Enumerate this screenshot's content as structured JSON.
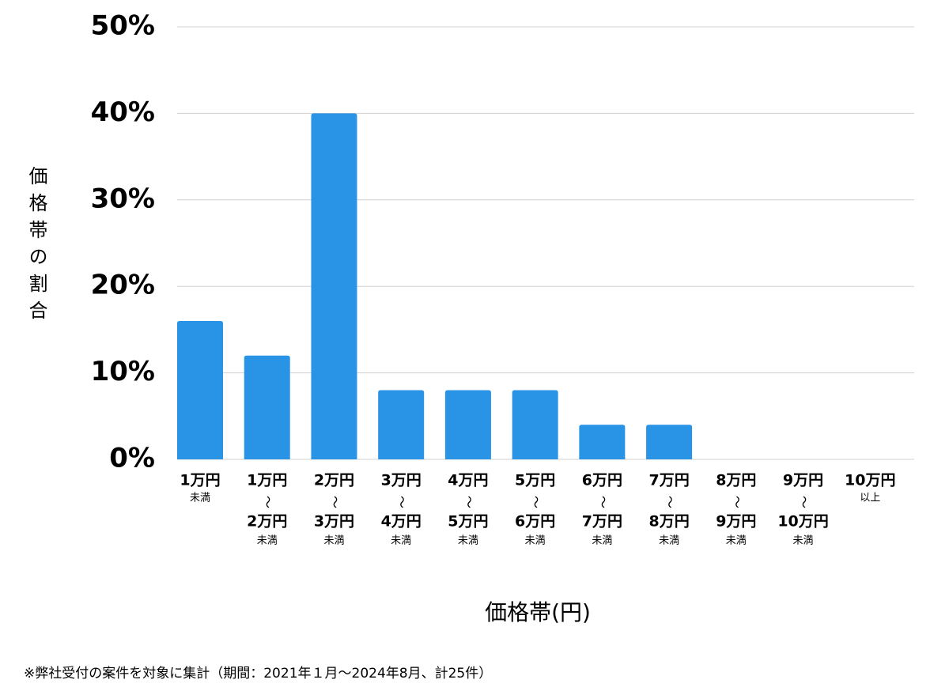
{
  "chart_data": {
    "type": "bar",
    "x_label": "価格帯(円)",
    "y_label": "価格帯の割合",
    "note": "※弊社受付の案件を対象に集計（期間：2021年１月～2024年8月、計25件）",
    "categories": [
      [
        "1万円",
        "未満"
      ],
      [
        "1万円",
        "〜",
        "2万円",
        "未満"
      ],
      [
        "2万円",
        "〜",
        "3万円",
        "未満"
      ],
      [
        "3万円",
        "〜",
        "4万円",
        "未満"
      ],
      [
        "4万円",
        "〜",
        "5万円",
        "未満"
      ],
      [
        "5万円",
        "〜",
        "6万円",
        "未満"
      ],
      [
        "6万円",
        "〜",
        "7万円",
        "未満"
      ],
      [
        "7万円",
        "〜",
        "8万円",
        "未満"
      ],
      [
        "8万円",
        "〜",
        "9万円",
        "未満"
      ],
      [
        "9万円",
        "〜",
        "10万円",
        "未満"
      ],
      [
        "10万円",
        "以上"
      ]
    ],
    "values": [
      16,
      12,
      40,
      8,
      8,
      8,
      4,
      4,
      0,
      0,
      0
    ],
    "color": "#2993e5",
    "ylim": [
      0,
      50
    ],
    "yticks": [
      {
        "value": 0,
        "label": "0%"
      },
      {
        "value": 10,
        "label": "10%"
      },
      {
        "value": 20,
        "label": "20%"
      },
      {
        "value": 30,
        "label": "30%"
      },
      {
        "value": 40,
        "label": "40%"
      },
      {
        "value": 50,
        "label": "50%"
      }
    ],
    "grid": true
  }
}
